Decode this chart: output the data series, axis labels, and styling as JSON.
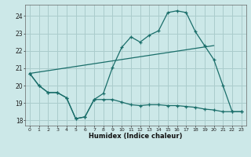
{
  "xlabel": "Humidex (Indice chaleur)",
  "bg_color": "#cce8e8",
  "grid_color": "#aacccc",
  "line_color": "#1a6e6a",
  "xlim": [
    -0.5,
    23.5
  ],
  "ylim": [
    17.7,
    24.65
  ],
  "yticks": [
    18,
    19,
    20,
    21,
    22,
    23,
    24
  ],
  "xticks": [
    0,
    1,
    2,
    3,
    4,
    5,
    6,
    7,
    8,
    9,
    10,
    11,
    12,
    13,
    14,
    15,
    16,
    17,
    18,
    19,
    20,
    21,
    22,
    23
  ],
  "line1_x": [
    0,
    1,
    2,
    3,
    4,
    5,
    6,
    7,
    8,
    9,
    10,
    11,
    12,
    13,
    14,
    15,
    16,
    17,
    18,
    19,
    20,
    21,
    22,
    23
  ],
  "line1_y": [
    20.7,
    20.0,
    19.6,
    19.6,
    19.3,
    18.1,
    18.2,
    19.2,
    19.55,
    21.05,
    22.2,
    22.8,
    22.5,
    22.9,
    23.15,
    24.2,
    24.3,
    24.2,
    23.1,
    22.3,
    21.5,
    20.0,
    18.5,
    18.5
  ],
  "line2_x": [
    0,
    1,
    2,
    3,
    4,
    5,
    6,
    7,
    8,
    9,
    10,
    11,
    12,
    13,
    14,
    15,
    16,
    17,
    18,
    19,
    20,
    21,
    22,
    23
  ],
  "line2_y": [
    20.7,
    20.0,
    19.6,
    19.6,
    19.3,
    18.1,
    18.2,
    19.2,
    19.2,
    19.2,
    19.05,
    18.9,
    18.85,
    18.9,
    18.9,
    18.85,
    18.85,
    18.8,
    18.75,
    18.65,
    18.6,
    18.5,
    18.5,
    18.5
  ],
  "line3_x": [
    0,
    20
  ],
  "line3_y": [
    20.7,
    22.3
  ]
}
